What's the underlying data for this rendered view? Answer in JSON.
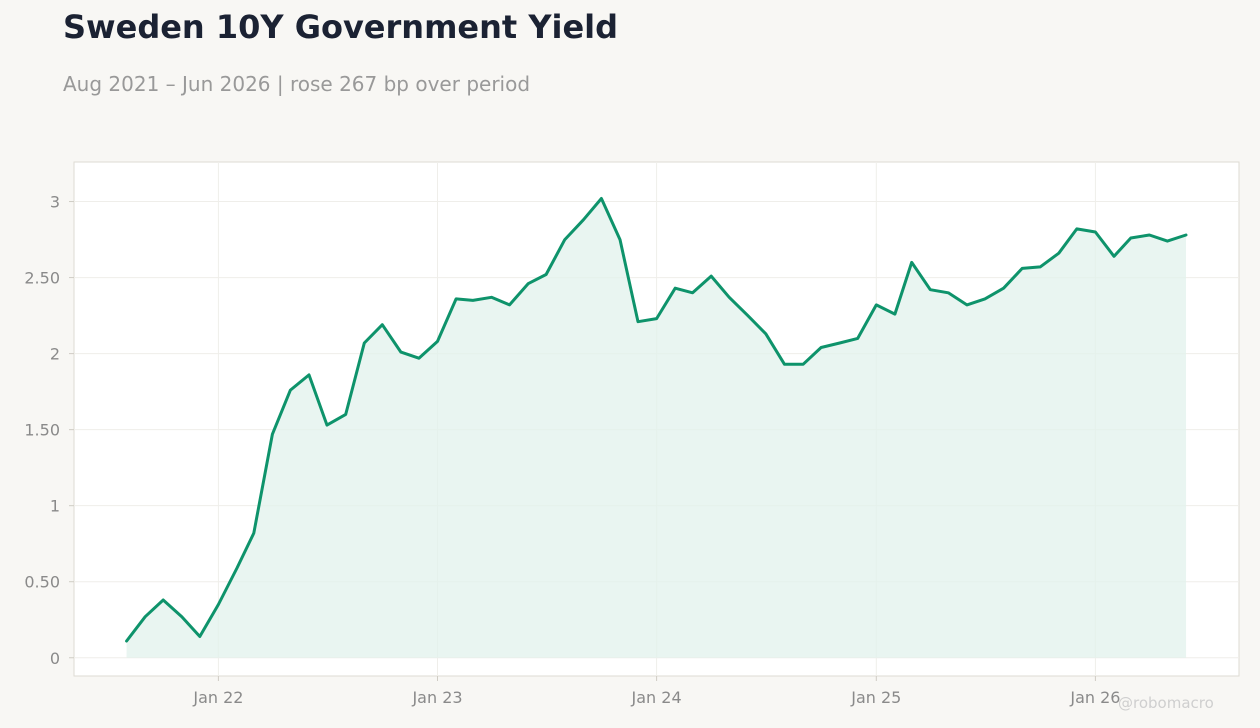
{
  "chart_data": {
    "type": "area",
    "title": "Sweden 10Y Government Yield",
    "subtitle": "Aug 2021 – Jun 2026 | rose 267 bp over period",
    "xlabel": "",
    "ylabel": "",
    "ylim": [
      -0.12,
      3.26
    ],
    "yticks": [
      0,
      0.5,
      1,
      1.5,
      2,
      2.5,
      3
    ],
    "ytick_labels": [
      "0",
      "0.50",
      "1",
      "1.50",
      "2",
      "2.50",
      "3"
    ],
    "xticks": [
      "2022-01-01",
      "2023-01-01",
      "2024-01-01",
      "2025-01-01",
      "2026-01-01"
    ],
    "xtick_labels": [
      "Jan 22",
      "Jan 23",
      "Jan 24",
      "Jan 25",
      "Jan 26"
    ],
    "grid": true,
    "line_color": "#0e936b",
    "fill_color": "#e2f1ec",
    "series": [
      {
        "x": [
          "2021-08",
          "2021-09",
          "2021-10",
          "2021-11",
          "2021-12",
          "2022-01",
          "2022-02",
          "2022-03",
          "2022-04",
          "2022-05",
          "2022-06",
          "2022-07",
          "2022-08",
          "2022-09",
          "2022-10",
          "2022-11",
          "2022-12",
          "2023-01",
          "2023-02",
          "2023-03",
          "2023-04",
          "2023-05",
          "2023-06",
          "2023-07",
          "2023-08",
          "2023-09",
          "2023-10",
          "2023-11",
          "2023-12",
          "2024-01",
          "2024-02",
          "2024-03",
          "2024-04",
          "2024-05",
          "2024-06",
          "2024-07",
          "2024-08",
          "2024-09",
          "2024-10",
          "2024-11",
          "2024-12",
          "2025-01",
          "2025-02",
          "2025-03",
          "2025-04",
          "2025-05",
          "2025-06",
          "2025-07",
          "2025-08",
          "2025-09",
          "2025-10",
          "2025-11",
          "2025-12",
          "2026-01",
          "2026-02",
          "2026-03",
          "2026-04",
          "2026-05",
          "2026-06"
        ],
        "values": [
          0.11,
          0.27,
          0.38,
          0.27,
          0.14,
          0.35,
          0.59,
          0.82,
          1.47,
          1.76,
          1.86,
          1.53,
          1.6,
          2.07,
          2.19,
          2.01,
          1.97,
          2.08,
          2.36,
          2.35,
          2.37,
          2.32,
          2.46,
          2.52,
          2.75,
          2.88,
          3.02,
          2.75,
          2.21,
          2.23,
          2.43,
          2.4,
          2.51,
          2.37,
          2.25,
          2.13,
          1.93,
          1.93,
          2.04,
          2.07,
          2.1,
          2.32,
          2.26,
          2.6,
          2.42,
          2.4,
          2.32,
          2.36,
          2.43,
          2.56,
          2.57,
          2.66,
          2.82,
          2.8,
          2.64,
          2.76,
          2.78,
          2.74,
          2.78
        ]
      }
    ]
  },
  "watermark": "@robomacro"
}
